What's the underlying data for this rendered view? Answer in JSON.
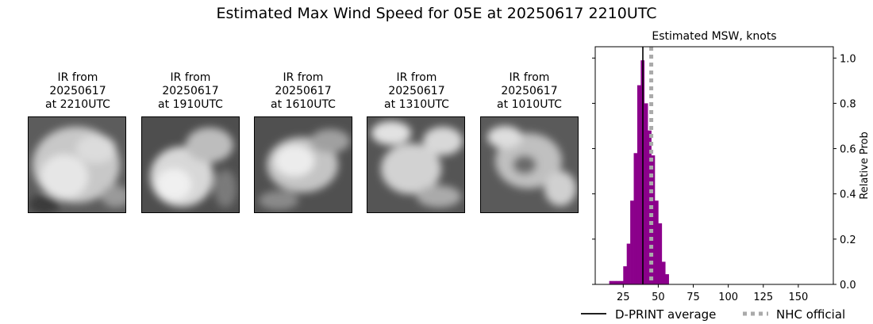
{
  "page_title": "Estimated Max Wind Speed for 05E at 20250617 2210UTC",
  "ir_panels": [
    {
      "title": "IR from\n20250617\nat 2210UTC"
    },
    {
      "title": "IR from\n20250617\nat 1910UTC"
    },
    {
      "title": "IR from\n20250617\nat 1610UTC"
    },
    {
      "title": "IR from\n20250617\nat 1310UTC"
    },
    {
      "title": "IR from\n20250617\nat 1010UTC"
    }
  ],
  "chart_data": {
    "type": "bar",
    "title": "Estimated MSW, knots",
    "xlabel": "",
    "ylabel": "Relative Prob",
    "xlim": [
      5,
      175
    ],
    "ylim": [
      0,
      1.05
    ],
    "xticks": [
      25,
      50,
      75,
      100,
      125,
      150
    ],
    "yticks": [
      0.0,
      0.2,
      0.4,
      0.6,
      0.8,
      1.0
    ],
    "bin_width": 2.5,
    "bins": [
      {
        "x": 15,
        "value": 0.015
      },
      {
        "x": 17.5,
        "value": 0.015
      },
      {
        "x": 20,
        "value": 0.015
      },
      {
        "x": 22.5,
        "value": 0.015
      },
      {
        "x": 25,
        "value": 0.08
      },
      {
        "x": 27.5,
        "value": 0.18
      },
      {
        "x": 30,
        "value": 0.37
      },
      {
        "x": 32.5,
        "value": 0.58
      },
      {
        "x": 35,
        "value": 0.88
      },
      {
        "x": 37.5,
        "value": 0.99
      },
      {
        "x": 40,
        "value": 0.8
      },
      {
        "x": 42.5,
        "value": 0.68
      },
      {
        "x": 45,
        "value": 0.57
      },
      {
        "x": 47.5,
        "value": 0.37
      },
      {
        "x": 50,
        "value": 0.27
      },
      {
        "x": 52.5,
        "value": 0.1
      },
      {
        "x": 55,
        "value": 0.045
      }
    ],
    "bar_color": "#8b008b",
    "dprint_average": 39,
    "nhc_official": 45,
    "legend": [
      {
        "label": "D-PRINT average",
        "color": "#000000",
        "style": "solid"
      },
      {
        "label": "NHC official",
        "color": "#aaaaaa",
        "style": "dotted"
      }
    ]
  }
}
